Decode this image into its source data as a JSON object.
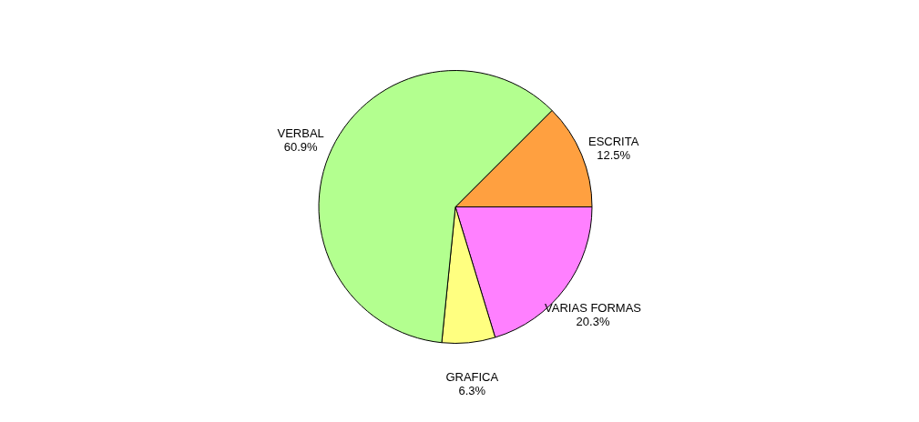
{
  "chart_data": {
    "type": "pie",
    "categories": [
      "ESCRITA",
      "VARIAS FORMAS",
      "GRAFICA",
      "VERBAL"
    ],
    "values": [
      12.5,
      20.3,
      6.3,
      60.9
    ],
    "value_labels": [
      "12.5%",
      "20.3%",
      "6.3%",
      "60.9%"
    ],
    "colors": [
      "#ffa040",
      "#ff80ff",
      "#ffff80",
      "#b3ff8f"
    ],
    "legend": false
  }
}
